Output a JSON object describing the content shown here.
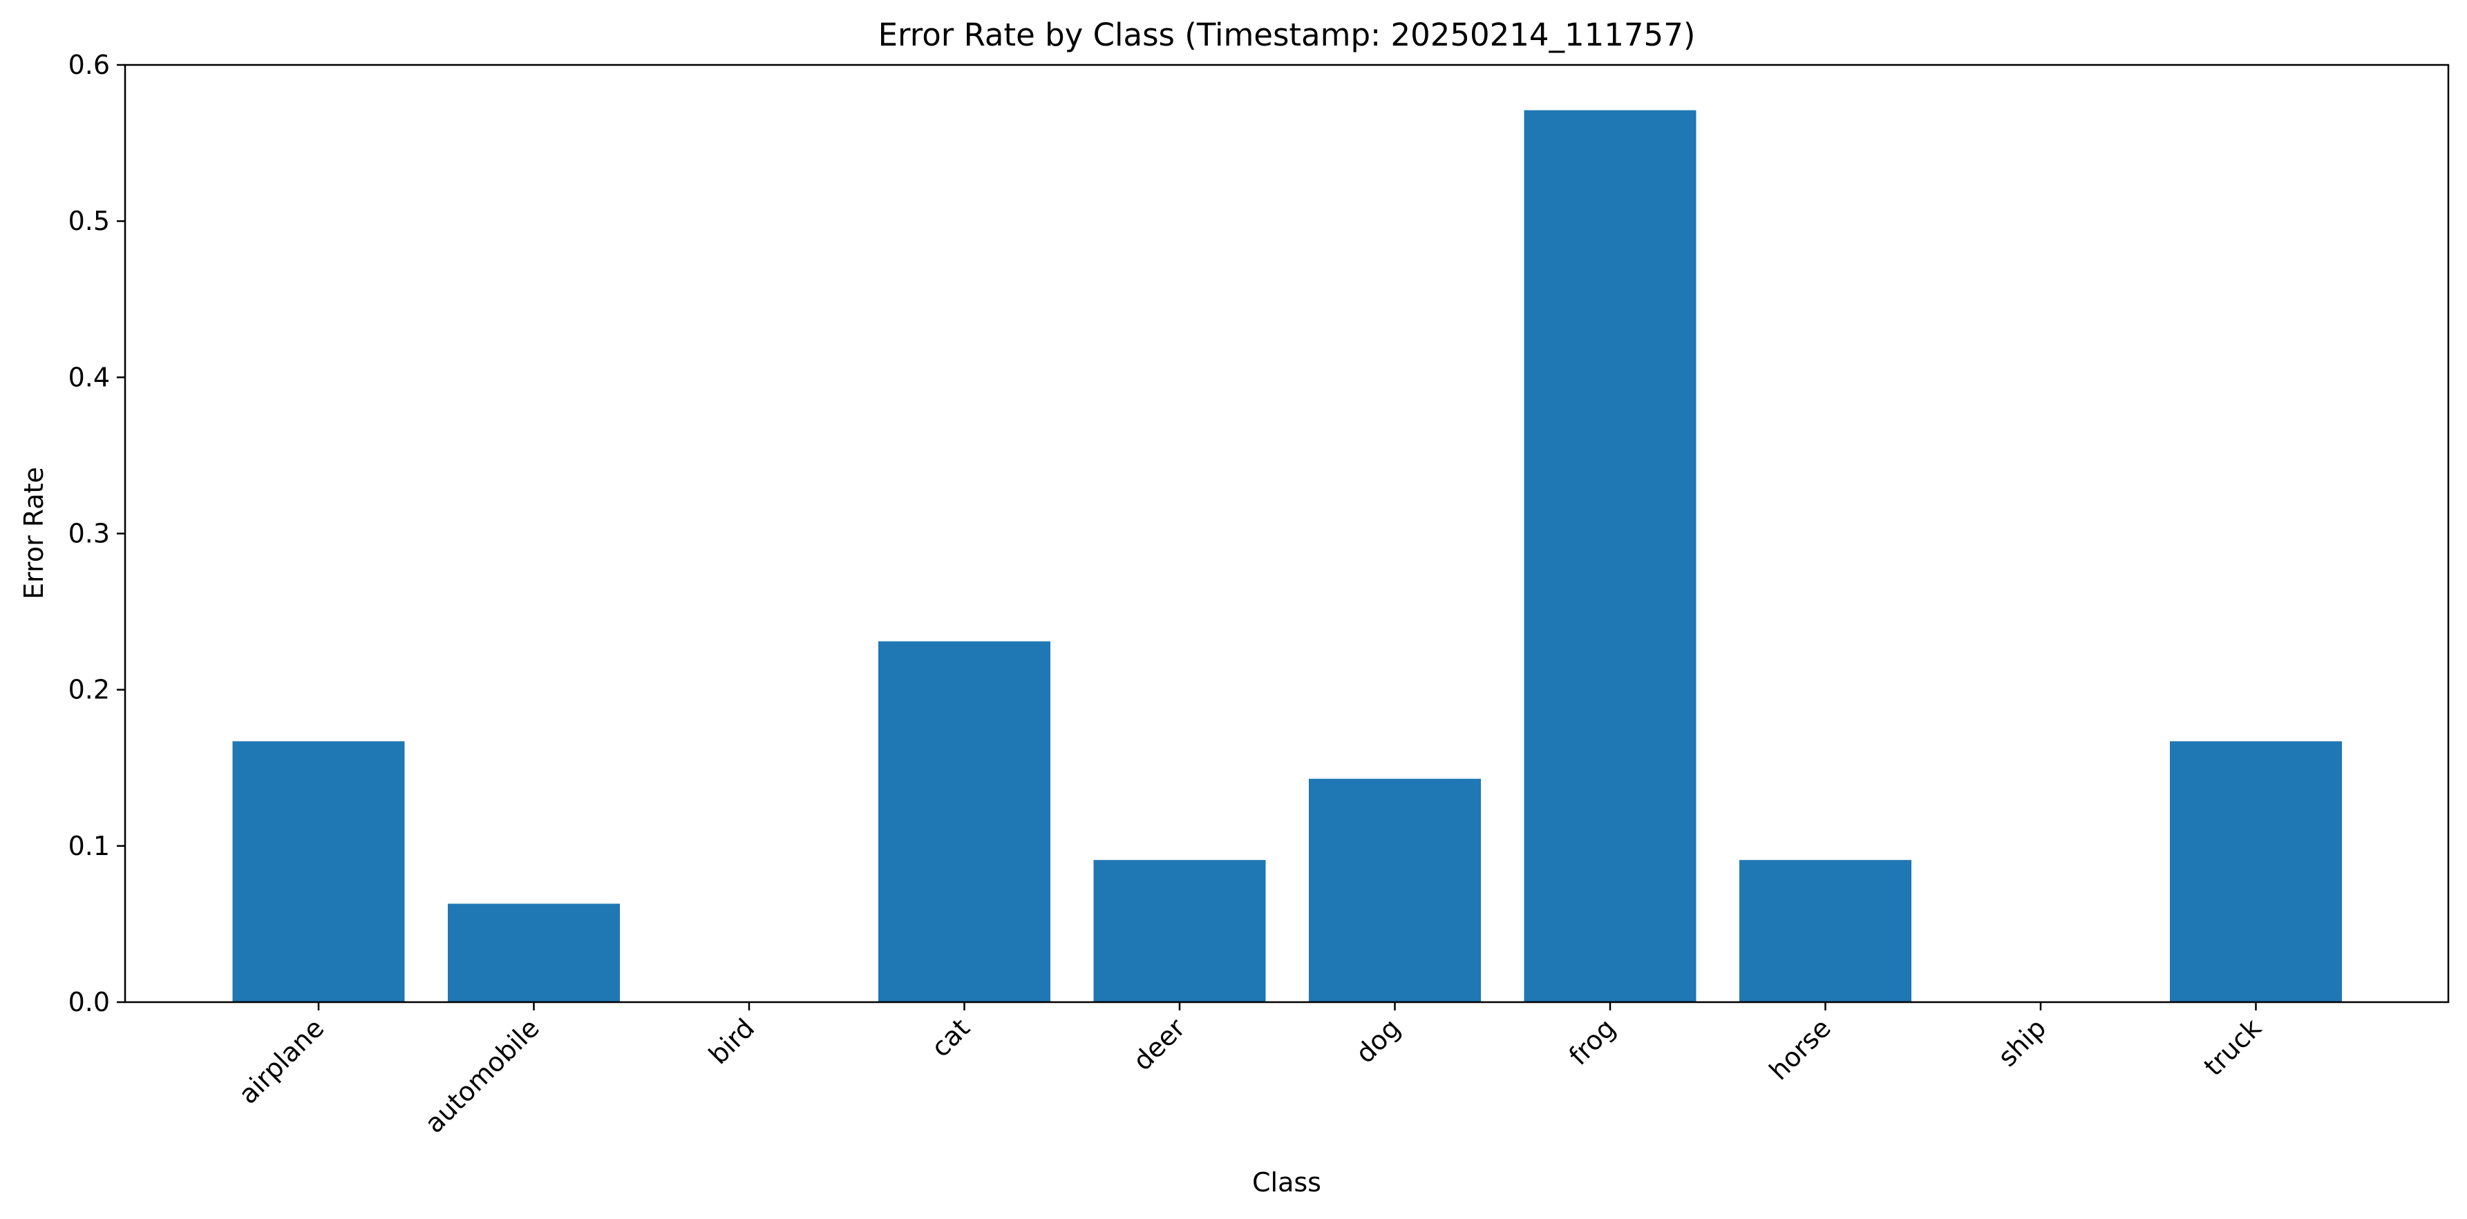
{
  "chart_data": {
    "type": "bar",
    "title": "Error Rate by Class (Timestamp: 20250214_111757)",
    "xlabel": "Class",
    "ylabel": "Error Rate",
    "categories": [
      "airplane",
      "automobile",
      "bird",
      "cat",
      "deer",
      "dog",
      "frog",
      "horse",
      "ship",
      "truck"
    ],
    "values": [
      0.167,
      0.063,
      0.0,
      0.231,
      0.091,
      0.143,
      0.571,
      0.091,
      0.0,
      0.167
    ],
    "ylim": [
      0,
      0.6
    ],
    "yticks": [
      0.0,
      0.1,
      0.2,
      0.3,
      0.4,
      0.5,
      0.6
    ],
    "ytick_labels": [
      "0.0",
      "0.1",
      "0.2",
      "0.3",
      "0.4",
      "0.5",
      "0.6"
    ],
    "grid": false,
    "legend": false,
    "bar_color": "#1f77b4"
  }
}
